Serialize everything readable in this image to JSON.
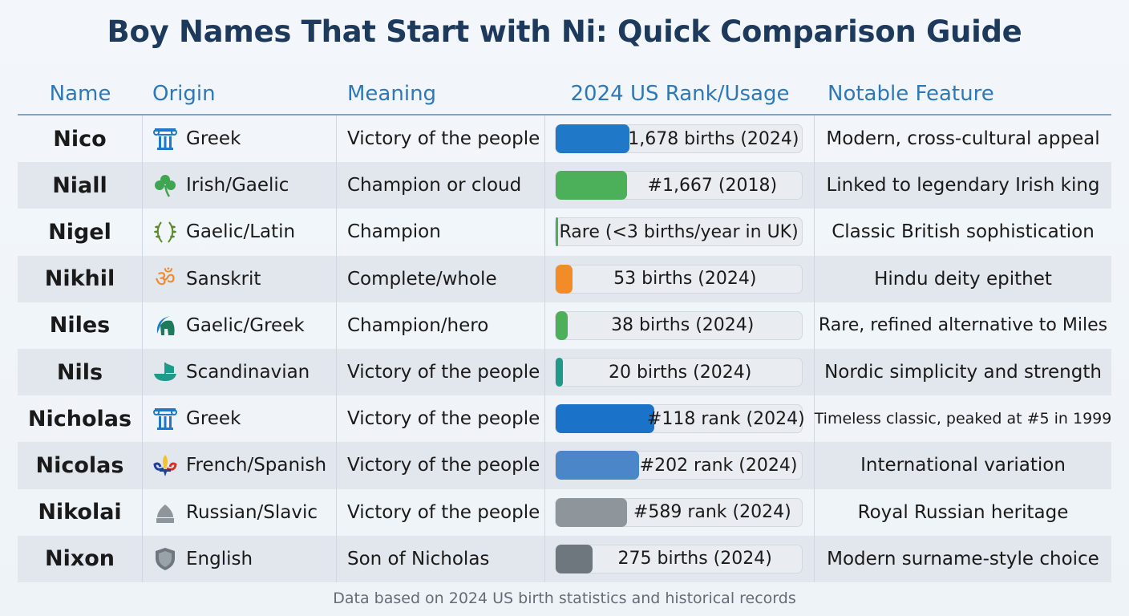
{
  "title": "Boy Names That Start with Ni: Quick Comparison Guide",
  "headers": [
    "Name",
    "Origin",
    "Meaning",
    "2024 US Rank/Usage",
    "Notable Feature"
  ],
  "rows": [
    {
      "name": "Nico",
      "origin": "Greek",
      "origin_icon": "greek-column-icon",
      "icon_color": "#1f78c8",
      "meaning": "Victory of the people",
      "usage": "1,678 births (2024)",
      "bar_fraction": 0.3,
      "bar_color": "#1f78c8",
      "feature": "Modern, cross-cultural appeal"
    },
    {
      "name": "Niall",
      "origin": "Irish/Gaelic",
      "origin_icon": "shamrock-icon",
      "icon_color": "#3fa553",
      "meaning": "Champion or cloud",
      "usage": "#1,667 (2018)",
      "bar_fraction": 0.29,
      "bar_color": "#4caf5a",
      "feature": "Linked to legendary Irish king"
    },
    {
      "name": "Nigel",
      "origin": "Gaelic/Latin",
      "origin_icon": "laurel-wreath-icon",
      "icon_color": "#5a8a2a",
      "meaning": "Champion",
      "usage": "Rare (<3 births/year in UK)",
      "bar_fraction": 0.01,
      "bar_color": "#4caf5a",
      "feature": "Classic British sophistication"
    },
    {
      "name": "Nikhil",
      "origin": "Sanskrit",
      "origin_icon": "om-icon",
      "icon_color": "#ef8a2c",
      "meaning": "Complete/whole",
      "usage": "53 births (2024)",
      "bar_fraction": 0.07,
      "bar_color": "#f28c28",
      "feature": "Hindu deity epithet"
    },
    {
      "name": "Niles",
      "origin": "Gaelic/Greek",
      "origin_icon": "spartan-helmet-icon",
      "icon_color": "#1e7a5a",
      "meaning": "Champion/hero",
      "usage": "38 births (2024)",
      "bar_fraction": 0.05,
      "bar_color": "#4caf5a",
      "feature": "Rare, refined alternative to Miles"
    },
    {
      "name": "Nils",
      "origin": "Scandinavian",
      "origin_icon": "viking-ship-icon",
      "icon_color": "#1e9a8a",
      "meaning": "Victory of the people",
      "usage": "20 births (2024)",
      "bar_fraction": 0.03,
      "bar_color": "#1e9a8a",
      "feature": "Nordic simplicity and strength"
    },
    {
      "name": "Nicholas",
      "origin": "Greek",
      "origin_icon": "greek-column-icon",
      "icon_color": "#1f78c8",
      "meaning": "Victory of the people",
      "usage": "#118 rank (2024)",
      "bar_fraction": 0.4,
      "bar_color": "#1a73c8",
      "feature": "Timeless classic, peaked at #5 in 1999"
    },
    {
      "name": "Nicolas",
      "origin": "French/Spanish",
      "origin_icon": "fleur-de-lis-icon",
      "icon_color": "#1f3f9a",
      "meaning": "Victory of the people",
      "usage": "#202 rank (2024)",
      "bar_fraction": 0.34,
      "bar_color": "#4a86c8",
      "feature": "International variation"
    },
    {
      "name": "Nikolai",
      "origin": "Russian/Slavic",
      "origin_icon": "onion-dome-icon",
      "icon_color": "#8e969c",
      "meaning": "Victory of the people",
      "usage": "#589 rank (2024)",
      "bar_fraction": 0.29,
      "bar_color": "#8e969c",
      "feature": "Royal Russian heritage"
    },
    {
      "name": "Nixon",
      "origin": "English",
      "origin_icon": "shield-icon",
      "icon_color": "#6f777e",
      "meaning": "Son of Nicholas",
      "usage": "275 births (2024)",
      "bar_fraction": 0.15,
      "bar_color": "#6f777e",
      "feature": "Modern surname-style choice"
    }
  ],
  "footer": "Data based on 2024 US birth statistics and historical records"
}
